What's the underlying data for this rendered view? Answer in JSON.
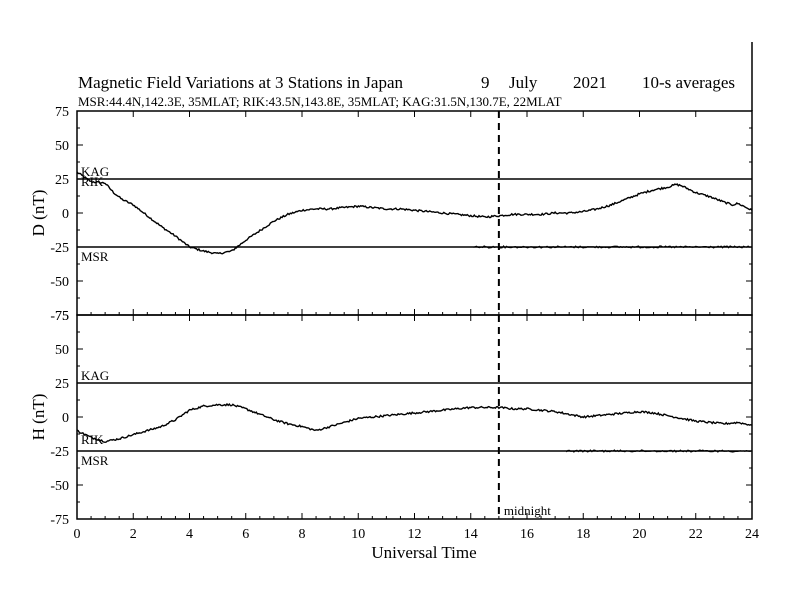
{
  "title": {
    "main": "Magnetic Field Variations at 3 Stations in Japan",
    "day": "9",
    "month": "July",
    "year": "2021",
    "averaging": "10-s averages",
    "stations_line": "MSR:44.4N,142.3E, 35MLAT;  RIK:43.5N,143.8E, 35MLAT;  KAG:31.5N,130.7E, 22MLAT"
  },
  "chart_data": {
    "type": "line",
    "xlabel": "Universal Time",
    "xlim": [
      0,
      24
    ],
    "x_ticks": [
      0,
      2,
      4,
      6,
      8,
      10,
      12,
      14,
      16,
      18,
      20,
      22,
      24
    ],
    "x_tick_labels": [
      "0",
      "2",
      "4",
      "6",
      "8",
      "10",
      "12",
      "14",
      "16",
      "18",
      "20",
      "22",
      "24"
    ],
    "annotation": {
      "label": "midnight",
      "x": 15,
      "style": "dashed vertical line"
    },
    "grid": false,
    "colors": {
      "line": "#000000",
      "background": "#ffffff"
    },
    "panels": [
      {
        "ylabel": "D (nT)",
        "ylim": [
          -75,
          75
        ],
        "y_ticks": [
          75,
          50,
          25,
          0,
          -25,
          -50,
          -75
        ],
        "y_tick_labels": [
          "75",
          "50",
          "25",
          "0",
          "-25",
          "-50",
          "-75"
        ],
        "series": [
          {
            "name": "KAG",
            "baseline": 25,
            "x": [
              0,
              15,
              24
            ],
            "values": [
              25,
              25,
              25
            ]
          },
          {
            "name": "RIK",
            "baseline": 0,
            "x": [
              0,
              0.5,
              1,
              1.3,
              1.6,
              2,
              2.5,
              3,
              3.5,
              4,
              4.5,
              5,
              5.5,
              6,
              6.5,
              7,
              7.5,
              8,
              8.5,
              9,
              9.5,
              10,
              10.5,
              11,
              11.5,
              12,
              12.5,
              13,
              13.5,
              14,
              14.5,
              15,
              15.5,
              16,
              16.5,
              17,
              17.5,
              18,
              18.5,
              19,
              19.5,
              20,
              20.5,
              21,
              21.3,
              21.5,
              21.8,
              22,
              22.5,
              23,
              23.3,
              23.5,
              24
            ],
            "values": [
              30,
              23,
              22,
              15,
              10,
              6,
              -2,
              -10,
              -17,
              -25,
              -28,
              -30,
              -28,
              -20,
              -13,
              -6,
              -1,
              2,
              3,
              3,
              4,
              5,
              4,
              3,
              3,
              2,
              1,
              0,
              -1,
              -2,
              -3,
              -2,
              -1,
              -1,
              -1,
              0,
              0,
              1,
              3,
              6,
              10,
              14,
              17,
              19,
              21,
              20,
              17,
              15,
              12,
              8,
              6,
              7,
              2
            ]
          },
          {
            "name": "MSR",
            "baseline": -25,
            "x": [
              0,
              14.1,
              14.2,
              24
            ],
            "values": [
              -25,
              -25,
              -25,
              -25
            ]
          }
        ]
      },
      {
        "ylabel": "H (nT)",
        "ylim": [
          -75,
          75
        ],
        "y_ticks": [
          75,
          50,
          25,
          0,
          -25,
          -50,
          -75
        ],
        "y_tick_labels": [
          "75",
          "50",
          "25",
          "0",
          "-25",
          "-50",
          "-75"
        ],
        "series": [
          {
            "name": "KAG",
            "baseline": 25,
            "x": [
              0,
              15,
              24
            ],
            "values": [
              25,
              25,
              25
            ]
          },
          {
            "name": "RIK",
            "baseline": 0,
            "x": [
              0,
              0.5,
              1,
              1.5,
              2,
              2.5,
              3,
              3.5,
              4,
              4.5,
              5,
              5.5,
              6,
              6.5,
              7,
              7.5,
              8,
              8.5,
              9,
              9.5,
              10,
              10.5,
              11,
              11.5,
              12,
              12.5,
              13,
              13.5,
              14,
              14.5,
              15,
              15.5,
              16,
              16.5,
              17,
              17.5,
              18,
              18.5,
              19,
              19.5,
              20,
              20.5,
              21,
              21.5,
              22,
              22.5,
              23,
              23.5,
              24
            ],
            "values": [
              -10,
              -15,
              -18,
              -16,
              -13,
              -10,
              -7,
              -2,
              5,
              8,
              9,
              9,
              6,
              2,
              -2,
              -5,
              -7,
              -10,
              -7,
              -4,
              -1,
              0,
              1,
              2,
              3,
              4,
              5,
              6,
              7,
              7,
              7,
              6,
              6,
              5,
              4,
              2,
              0,
              1,
              2,
              3,
              4,
              3,
              1,
              -1,
              -3,
              -4,
              -5,
              -4,
              -6
            ]
          },
          {
            "name": "MSR",
            "baseline": -25,
            "x": [
              0,
              17.4,
              17.5,
              24
            ],
            "values": [
              -25,
              -25,
              -25,
              -25
            ]
          }
        ]
      }
    ]
  }
}
